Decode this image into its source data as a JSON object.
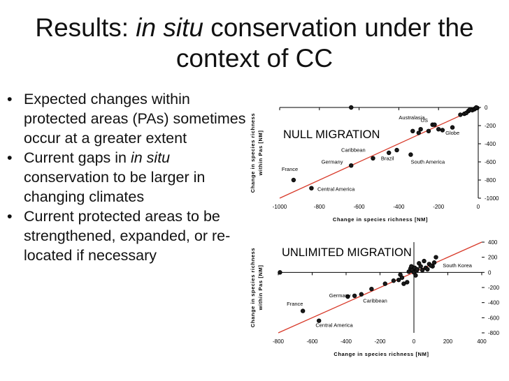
{
  "slide": {
    "title_pre": "Results: ",
    "title_em": "in situ",
    "title_post": " conservation under the context of CC",
    "bullets": [
      {
        "pre": "Expected changes within protected areas (PAs) sometimes occur at a greater extent",
        "em": "",
        "post": ""
      },
      {
        "pre": "Current gaps in ",
        "em": "in situ",
        "post": " conservation to be larger in changing climates"
      },
      {
        "pre": "Current protected areas to be strengthened, expanded, or re-located if necessary",
        "em": "",
        "post": ""
      }
    ]
  },
  "chart_data": [
    {
      "type": "scatter",
      "title": "NULL MIGRATION",
      "xlabel": "Change in species richness [NM]",
      "ylabel": [
        "Change in species richness",
        "within Pas [NM]"
      ],
      "xlim": [
        -1000,
        0
      ],
      "ylim": [
        -1000,
        0
      ],
      "xticks": [
        -1000,
        -800,
        -600,
        -400,
        -200,
        0
      ],
      "yticks": [
        0,
        -200,
        -400,
        -600,
        -800,
        -1000
      ],
      "trend": [
        [
          -1000,
          -1000
        ],
        [
          0,
          0
        ]
      ],
      "points": [
        [
          -640,
          0
        ],
        [
          -930,
          -800
        ],
        [
          -840,
          -890
        ],
        [
          -640,
          -640
        ],
        [
          -530,
          -560
        ],
        [
          -450,
          -500
        ],
        [
          -410,
          -470
        ],
        [
          -340,
          -520
        ],
        [
          -330,
          -260
        ],
        [
          -300,
          -280
        ],
        [
          -290,
          -240
        ],
        [
          -250,
          -260
        ],
        [
          -230,
          -190
        ],
        [
          -220,
          -190
        ],
        [
          -200,
          -240
        ],
        [
          -180,
          -250
        ],
        [
          -130,
          -220
        ],
        [
          -90,
          -80
        ],
        [
          -70,
          -70
        ],
        [
          -60,
          -60
        ],
        [
          -50,
          -40
        ],
        [
          -45,
          -30
        ],
        [
          -40,
          -20
        ],
        [
          -30,
          -30
        ],
        [
          -20,
          -20
        ],
        [
          -15,
          -10
        ],
        [
          -5,
          -5
        ],
        [
          -10,
          0
        ]
      ],
      "labels": [
        {
          "text": "Australasia",
          "x": -400,
          "y": -130
        },
        {
          "text": "US",
          "x": -290,
          "y": -160
        },
        {
          "text": "Globe",
          "x": -165,
          "y": -300
        },
        {
          "text": "Caribbean",
          "x": -690,
          "y": -490
        },
        {
          "text": "Brazil",
          "x": -490,
          "y": -580
        },
        {
          "text": "South America",
          "x": -340,
          "y": -620
        },
        {
          "text": "Germany",
          "x": -790,
          "y": -620
        },
        {
          "text": "France",
          "x": -990,
          "y": -700
        },
        {
          "text": "Central America",
          "x": -810,
          "y": -920
        }
      ]
    },
    {
      "type": "scatter",
      "title": "UNLIMITED MIGRATION",
      "xlabel": "Change in species richness [NM]",
      "ylabel": [
        "Change in species richness",
        "within Pas [NM]"
      ],
      "xlim": [
        -800,
        400
      ],
      "ylim": [
        -800,
        400
      ],
      "xticks": [
        -800,
        -600,
        -400,
        -200,
        0,
        200,
        400
      ],
      "yticks": [
        400,
        200,
        0,
        -200,
        -400,
        -600,
        -800
      ],
      "trend": [
        [
          -800,
          -800
        ],
        [
          400,
          400
        ]
      ],
      "points": [
        [
          -655,
          -510
        ],
        [
          -560,
          -640
        ],
        [
          -390,
          -320
        ],
        [
          -350,
          -310
        ],
        [
          -310,
          -290
        ],
        [
          -790,
          0
        ],
        [
          -250,
          -220
        ],
        [
          -170,
          -150
        ],
        [
          -120,
          -110
        ],
        [
          -90,
          -100
        ],
        [
          -80,
          -30
        ],
        [
          -70,
          -70
        ],
        [
          -60,
          -150
        ],
        [
          -40,
          -130
        ],
        [
          -30,
          10
        ],
        [
          -20,
          50
        ],
        [
          -15,
          80
        ],
        [
          -10,
          30
        ],
        [
          0,
          0
        ],
        [
          5,
          60
        ],
        [
          10,
          -40
        ],
        [
          15,
          20
        ],
        [
          20,
          40
        ],
        [
          30,
          120
        ],
        [
          40,
          80
        ],
        [
          50,
          30
        ],
        [
          60,
          150
        ],
        [
          70,
          60
        ],
        [
          80,
          40
        ],
        [
          90,
          110
        ],
        [
          110,
          80
        ],
        [
          130,
          200
        ],
        [
          100,
          90
        ],
        [
          120,
          130
        ]
      ],
      "labels": [
        {
          "text": "South Korea",
          "x": 170,
          "y": 70
        },
        {
          "text": "Germany",
          "x": -500,
          "y": -330
        },
        {
          "text": "Caribbean",
          "x": -300,
          "y": -400
        },
        {
          "text": "France",
          "x": -750,
          "y": -440
        },
        {
          "text": "Central America",
          "x": -580,
          "y": -720
        }
      ]
    }
  ]
}
